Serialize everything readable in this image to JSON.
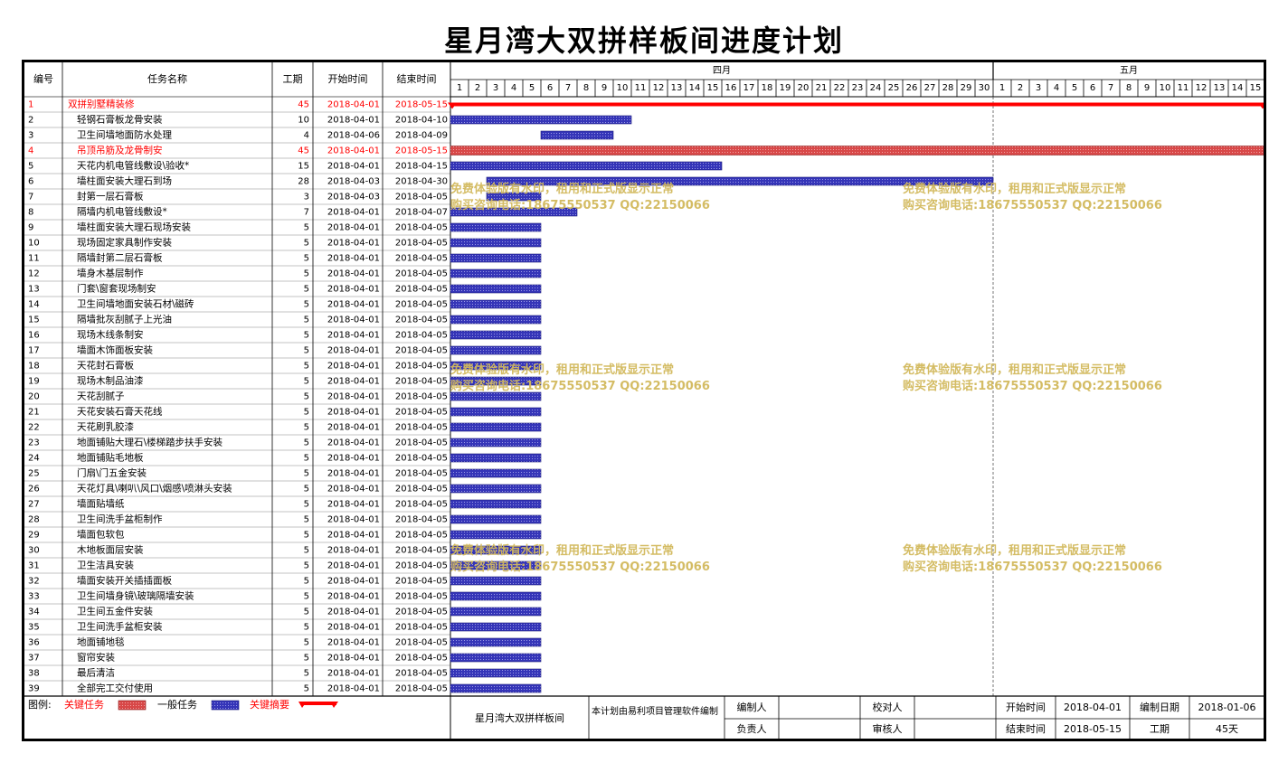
{
  "title": "星月湾大双拼样板间进度计划",
  "headers": {
    "no": "编号",
    "name": "任务名称",
    "dur": "工期",
    "start": "开始时间",
    "end": "结束时间"
  },
  "months": [
    {
      "label": "四月",
      "days": [
        "1",
        "2",
        "3",
        "4",
        "5",
        "6",
        "7",
        "8",
        "9",
        "10",
        "11",
        "12",
        "13",
        "14",
        "15",
        "16",
        "17",
        "18",
        "19",
        "20",
        "21",
        "22",
        "23",
        "24",
        "25",
        "26",
        "27",
        "28",
        "29",
        "30"
      ]
    },
    {
      "label": "五月",
      "days": [
        "1",
        "2",
        "3",
        "4",
        "5",
        "6",
        "7",
        "8",
        "9",
        "10",
        "11",
        "12",
        "13",
        "14",
        "15"
      ]
    }
  ],
  "tasks": [
    {
      "no": "1",
      "name": "双拼别墅精装修",
      "dur": "45",
      "start": "2018-04-01",
      "end": "2018-05-15",
      "type": "summary",
      "s": 1,
      "d": 45
    },
    {
      "no": "2",
      "name": "轻钢石膏板龙骨安装",
      "dur": "10",
      "start": "2018-04-01",
      "end": "2018-04-10",
      "type": "normal",
      "s": 1,
      "d": 10
    },
    {
      "no": "3",
      "name": "卫生间墙地面防水处理",
      "dur": "4",
      "start": "2018-04-06",
      "end": "2018-04-09",
      "type": "normal",
      "s": 6,
      "d": 4
    },
    {
      "no": "4",
      "name": "吊顶吊筋及龙骨制安",
      "dur": "45",
      "start": "2018-04-01",
      "end": "2018-05-15",
      "type": "critical",
      "s": 1,
      "d": 45
    },
    {
      "no": "5",
      "name": "天花内机电管线敷设\\验收*",
      "dur": "15",
      "start": "2018-04-01",
      "end": "2018-04-15",
      "type": "normal",
      "s": 1,
      "d": 15
    },
    {
      "no": "6",
      "name": "墙柱面安装大理石到场",
      "dur": "28",
      "start": "2018-04-03",
      "end": "2018-04-30",
      "type": "normal",
      "s": 3,
      "d": 28
    },
    {
      "no": "7",
      "name": "封第一层石膏板",
      "dur": "3",
      "start": "2018-04-03",
      "end": "2018-04-05",
      "type": "normal",
      "s": 3,
      "d": 3
    },
    {
      "no": "8",
      "name": "隔墙内机电管线敷设*",
      "dur": "7",
      "start": "2018-04-01",
      "end": "2018-04-07",
      "type": "normal",
      "s": 1,
      "d": 7
    },
    {
      "no": "9",
      "name": "墙柱面安装大理石现场安装",
      "dur": "5",
      "start": "2018-04-01",
      "end": "2018-04-05",
      "type": "normal",
      "s": 1,
      "d": 5
    },
    {
      "no": "10",
      "name": "现场固定家具制作安装",
      "dur": "5",
      "start": "2018-04-01",
      "end": "2018-04-05",
      "type": "normal",
      "s": 1,
      "d": 5
    },
    {
      "no": "11",
      "name": "隔墙封第二层石膏板",
      "dur": "5",
      "start": "2018-04-01",
      "end": "2018-04-05",
      "type": "normal",
      "s": 1,
      "d": 5
    },
    {
      "no": "12",
      "name": "墙身木基层制作",
      "dur": "5",
      "start": "2018-04-01",
      "end": "2018-04-05",
      "type": "normal",
      "s": 1,
      "d": 5
    },
    {
      "no": "13",
      "name": "门套\\窗套现场制安",
      "dur": "5",
      "start": "2018-04-01",
      "end": "2018-04-05",
      "type": "normal",
      "s": 1,
      "d": 5
    },
    {
      "no": "14",
      "name": "卫生间墙地面安装石材\\磁砖",
      "dur": "5",
      "start": "2018-04-01",
      "end": "2018-04-05",
      "type": "normal",
      "s": 1,
      "d": 5
    },
    {
      "no": "15",
      "name": "隔墙批灰刮腻子上光油",
      "dur": "5",
      "start": "2018-04-01",
      "end": "2018-04-05",
      "type": "normal",
      "s": 1,
      "d": 5
    },
    {
      "no": "16",
      "name": "现场木线条制安",
      "dur": "5",
      "start": "2018-04-01",
      "end": "2018-04-05",
      "type": "normal",
      "s": 1,
      "d": 5
    },
    {
      "no": "17",
      "name": "墙面木饰面板安装",
      "dur": "5",
      "start": "2018-04-01",
      "end": "2018-04-05",
      "type": "normal",
      "s": 1,
      "d": 5
    },
    {
      "no": "18",
      "name": "天花封石膏板",
      "dur": "5",
      "start": "2018-04-01",
      "end": "2018-04-05",
      "type": "normal",
      "s": 1,
      "d": 5
    },
    {
      "no": "19",
      "name": "现场木制品油漆",
      "dur": "5",
      "start": "2018-04-01",
      "end": "2018-04-05",
      "type": "normal",
      "s": 1,
      "d": 5
    },
    {
      "no": "20",
      "name": "天花刮腻子",
      "dur": "5",
      "start": "2018-04-01",
      "end": "2018-04-05",
      "type": "normal",
      "s": 1,
      "d": 5
    },
    {
      "no": "21",
      "name": "天花安装石膏天花线",
      "dur": "5",
      "start": "2018-04-01",
      "end": "2018-04-05",
      "type": "normal",
      "s": 1,
      "d": 5
    },
    {
      "no": "22",
      "name": "天花刷乳胶漆",
      "dur": "5",
      "start": "2018-04-01",
      "end": "2018-04-05",
      "type": "normal",
      "s": 1,
      "d": 5
    },
    {
      "no": "23",
      "name": "地面铺贴大理石\\楼梯踏步扶手安装",
      "dur": "5",
      "start": "2018-04-01",
      "end": "2018-04-05",
      "type": "normal",
      "s": 1,
      "d": 5
    },
    {
      "no": "24",
      "name": "地面铺贴毛地板",
      "dur": "5",
      "start": "2018-04-01",
      "end": "2018-04-05",
      "type": "normal",
      "s": 1,
      "d": 5
    },
    {
      "no": "25",
      "name": "门扇\\门五金安装",
      "dur": "5",
      "start": "2018-04-01",
      "end": "2018-04-05",
      "type": "normal",
      "s": 1,
      "d": 5
    },
    {
      "no": "26",
      "name": "天花灯具\\喇叭\\风口\\烟感\\喷淋头安装",
      "dur": "5",
      "start": "2018-04-01",
      "end": "2018-04-05",
      "type": "normal",
      "s": 1,
      "d": 5
    },
    {
      "no": "27",
      "name": "墙面贴墙纸",
      "dur": "5",
      "start": "2018-04-01",
      "end": "2018-04-05",
      "type": "normal",
      "s": 1,
      "d": 5
    },
    {
      "no": "28",
      "name": "卫生间洗手盆柜制作",
      "dur": "5",
      "start": "2018-04-01",
      "end": "2018-04-05",
      "type": "normal",
      "s": 1,
      "d": 5
    },
    {
      "no": "29",
      "name": "墙面包软包",
      "dur": "5",
      "start": "2018-04-01",
      "end": "2018-04-05",
      "type": "normal",
      "s": 1,
      "d": 5
    },
    {
      "no": "30",
      "name": "木地板面层安装",
      "dur": "5",
      "start": "2018-04-01",
      "end": "2018-04-05",
      "type": "normal",
      "s": 1,
      "d": 5
    },
    {
      "no": "31",
      "name": "卫生洁具安装",
      "dur": "5",
      "start": "2018-04-01",
      "end": "2018-04-05",
      "type": "normal",
      "s": 1,
      "d": 5
    },
    {
      "no": "32",
      "name": "墙面安装开关插插面板",
      "dur": "5",
      "start": "2018-04-01",
      "end": "2018-04-05",
      "type": "normal",
      "s": 1,
      "d": 5
    },
    {
      "no": "33",
      "name": "卫生间墙身镜\\玻璃隔墙安装",
      "dur": "5",
      "start": "2018-04-01",
      "end": "2018-04-05",
      "type": "normal",
      "s": 1,
      "d": 5
    },
    {
      "no": "34",
      "name": "卫生间五金件安装",
      "dur": "5",
      "start": "2018-04-01",
      "end": "2018-04-05",
      "type": "normal",
      "s": 1,
      "d": 5
    },
    {
      "no": "35",
      "name": "卫生间洗手盆柜安装",
      "dur": "5",
      "start": "2018-04-01",
      "end": "2018-04-05",
      "type": "normal",
      "s": 1,
      "d": 5
    },
    {
      "no": "36",
      "name": "地面铺地毯",
      "dur": "5",
      "start": "2018-04-01",
      "end": "2018-04-05",
      "type": "normal",
      "s": 1,
      "d": 5
    },
    {
      "no": "37",
      "name": "窗帘安装",
      "dur": "5",
      "start": "2018-04-01",
      "end": "2018-04-05",
      "type": "normal",
      "s": 1,
      "d": 5
    },
    {
      "no": "38",
      "name": "最后清洁",
      "dur": "5",
      "start": "2018-04-01",
      "end": "2018-04-05",
      "type": "normal",
      "s": 1,
      "d": 5
    },
    {
      "no": "39",
      "name": "全部完工交付使用",
      "dur": "5",
      "start": "2018-04-01",
      "end": "2018-04-05",
      "type": "normal",
      "s": 1,
      "d": 5
    }
  ],
  "legend": {
    "label": "图例:",
    "critical": "关键任务",
    "normal": "一般任务",
    "summary": "关键摘要"
  },
  "footer": {
    "project": "星月湾大双拼样板间",
    "note": "本计划由易利项目管理软件编制",
    "editor": "编制人",
    "owner": "负责人",
    "checker": "校对人",
    "auditor": "审核人",
    "start_label": "开始时间",
    "start_value": "2018-04-01",
    "end_label": "结束时间",
    "end_value": "2018-05-15",
    "date_label": "编制日期",
    "date_value": "2018-01-06",
    "dur_label": "工期",
    "dur_value": "45天"
  },
  "watermark": {
    "line1": "免费体验版有水印，租用和正式版显示正常",
    "line2": "购买咨询电话:18675550537 QQ:22150066"
  },
  "colors": {
    "normal_bar": "#3535b8",
    "critical_bar": "#d84848",
    "critical_text": "#ff0000",
    "summary_bar": "#ff0000",
    "grid": "#888888",
    "watermark": "#d2b95c"
  }
}
